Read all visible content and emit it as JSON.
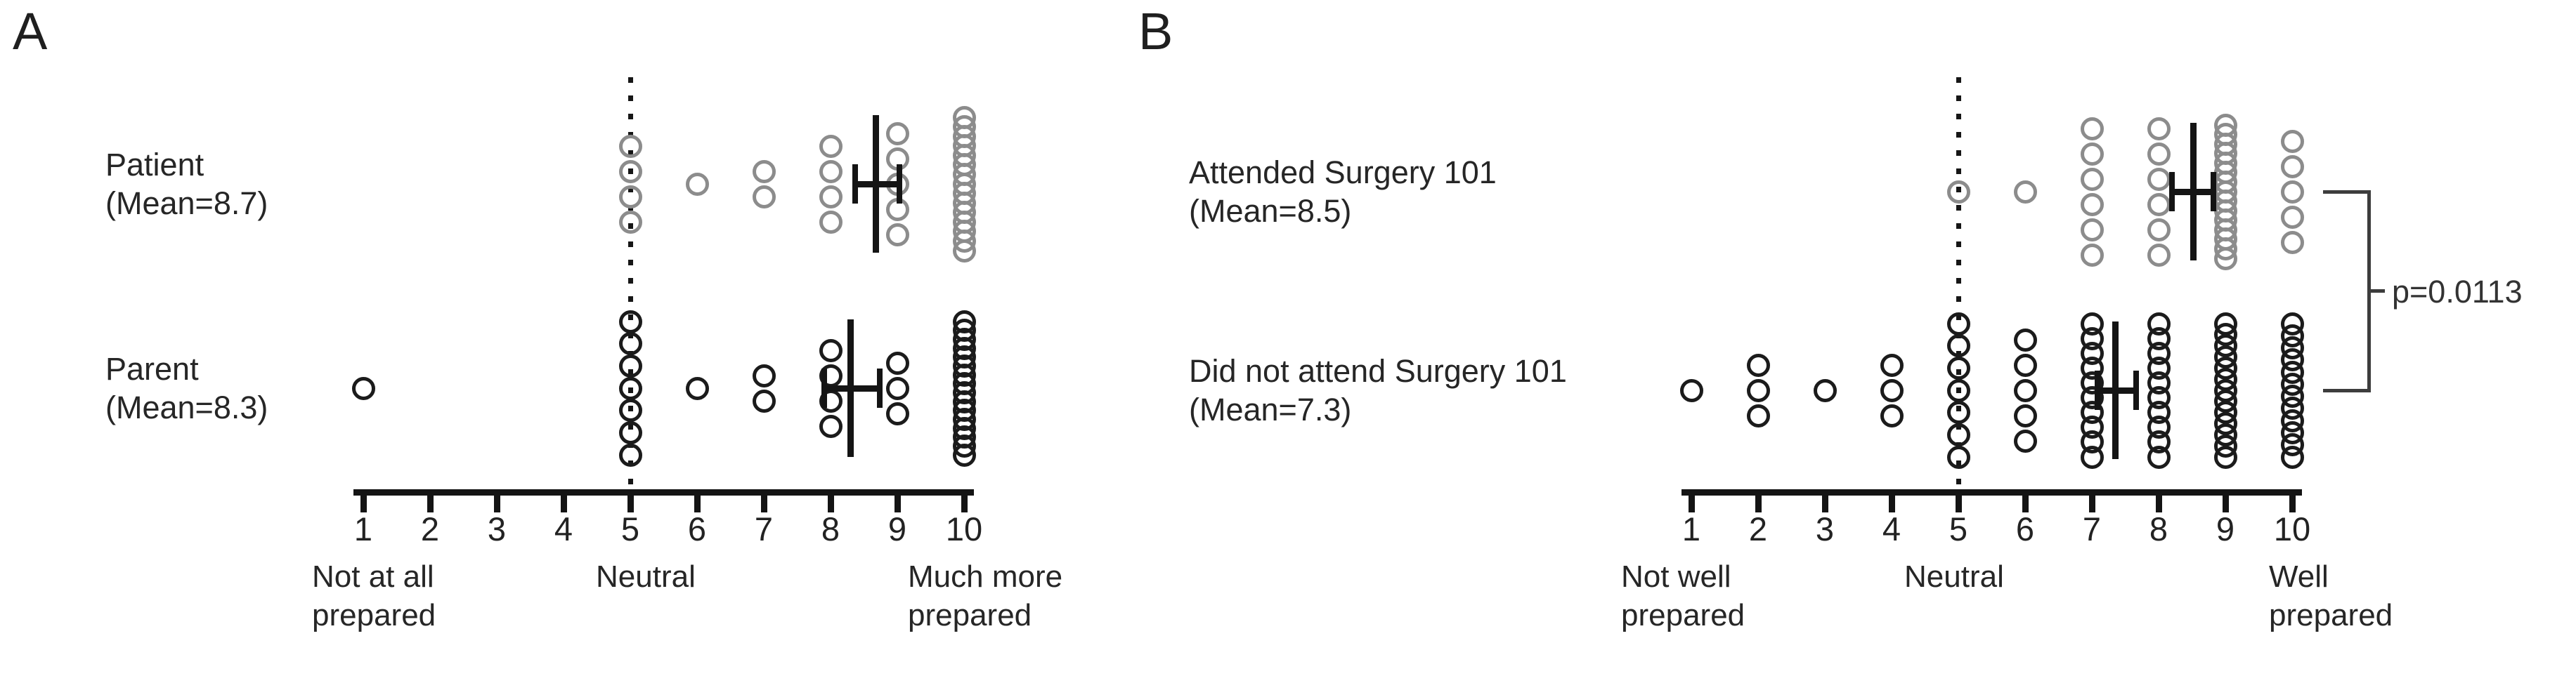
{
  "background_color": "#ffffff",
  "chart_data": [
    {
      "type": "scatter",
      "subtype": "dot-frequency-plot",
      "panel_letter": "A",
      "x_axis": {
        "min": 1,
        "max": 10,
        "ticks": [
          1,
          2,
          3,
          4,
          5,
          6,
          7,
          8,
          9,
          10
        ],
        "neutral_reference_at": 5,
        "anchor_labels": [
          {
            "value": 1,
            "lines": [
              "Not at all",
              "prepared"
            ]
          },
          {
            "value": 5,
            "lines": [
              "Neutral"
            ]
          },
          {
            "value": 10,
            "lines": [
              "Much more",
              "prepared"
            ]
          }
        ]
      },
      "rows": [
        {
          "group": "Patient",
          "label_lines": [
            "Patient",
            "(Mean=8.7)"
          ],
          "mean": 8.7,
          "mean_marker_at": 8.68,
          "ci": [
            8.37,
            9.03
          ],
          "color": "#8c8c8c",
          "counts": {
            "5": 4,
            "6": 1,
            "7": 2,
            "8": 4,
            "9": 5,
            "10": 15
          }
        },
        {
          "group": "Parent",
          "label_lines": [
            "Parent",
            "(Mean=8.3)"
          ],
          "mean": 8.3,
          "mean_marker_at": 8.3,
          "ci": [
            7.9,
            8.74
          ],
          "color": "#1b1b1b",
          "counts": {
            "1": 1,
            "5": 7,
            "6": 1,
            "7": 2,
            "8": 4,
            "9": 3,
            "10": 16
          }
        }
      ]
    },
    {
      "type": "scatter",
      "subtype": "dot-frequency-plot",
      "panel_letter": "B",
      "x_axis": {
        "min": 1,
        "max": 10,
        "ticks": [
          1,
          2,
          3,
          4,
          5,
          6,
          7,
          8,
          9,
          10
        ],
        "neutral_reference_at": 5,
        "anchor_labels": [
          {
            "value": 1,
            "lines": [
              "Not well",
              "prepared"
            ]
          },
          {
            "value": 5,
            "lines": [
              "Neutral"
            ]
          },
          {
            "value": 10,
            "lines": [
              "Well",
              "prepared"
            ]
          }
        ]
      },
      "rows": [
        {
          "group": "Attended Surgery 101",
          "label_lines": [
            "Attended Surgery 101",
            "(Mean=8.5)"
          ],
          "mean": 8.5,
          "mean_marker_at": 8.52,
          "ci": [
            8.2,
            8.82
          ],
          "color": "#8c8c8c",
          "counts": {
            "5": 1,
            "6": 1,
            "7": 6,
            "8": 6,
            "9": 15,
            "10": 5
          }
        },
        {
          "group": "Did not attend Surgery 101",
          "label_lines": [
            "Did not attend Surgery 101",
            "(Mean=7.3)"
          ],
          "mean": 7.3,
          "mean_marker_at": 7.35,
          "ci": [
            7.08,
            7.66
          ],
          "color": "#1b1b1b",
          "counts": {
            "1": 1,
            "2": 3,
            "3": 1,
            "4": 3,
            "5": 7,
            "6": 5,
            "7": 10,
            "8": 10,
            "9": 13,
            "10": 12
          }
        }
      ],
      "significance": {
        "label": "p=0.0113"
      }
    }
  ]
}
